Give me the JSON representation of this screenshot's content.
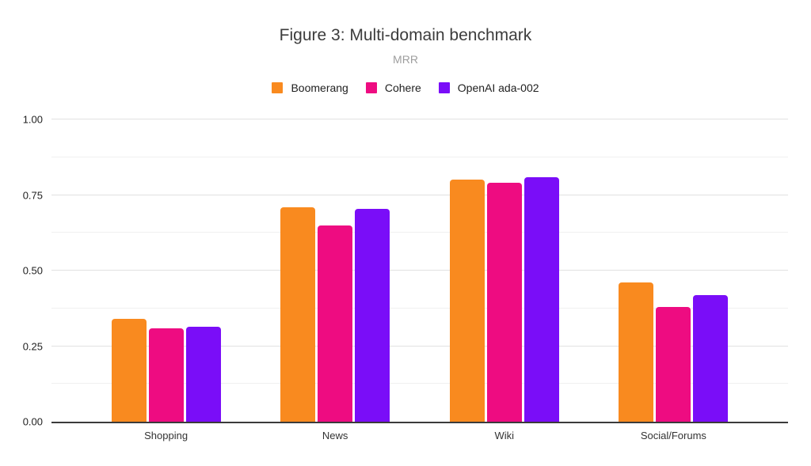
{
  "figure": {
    "title": "Figure 3: Multi-domain benchmark",
    "subtitle": "MRR"
  },
  "chart_data": {
    "type": "bar",
    "title": "Figure 3: Multi-domain benchmark",
    "subtitle": "MRR",
    "categories": [
      "Shopping",
      "News",
      "Wiki",
      "Social/Forums"
    ],
    "series": [
      {
        "name": "Boomerang",
        "color": "#F98A1F",
        "values": [
          0.34,
          0.71,
          0.8,
          0.46
        ]
      },
      {
        "name": "Cohere",
        "color": "#EE0C81",
        "values": [
          0.31,
          0.65,
          0.79,
          0.38
        ]
      },
      {
        "name": "OpenAI ada-002",
        "color": "#7A0DF8",
        "values": [
          0.315,
          0.705,
          0.81,
          0.42
        ]
      }
    ],
    "xlabel": "",
    "ylabel": "",
    "ylim": [
      0,
      1
    ],
    "yticks": [
      {
        "value": 0.0,
        "label": "0.00"
      },
      {
        "value": 0.25,
        "label": "0.25"
      },
      {
        "value": 0.5,
        "label": "0.50"
      },
      {
        "value": 0.75,
        "label": "0.75"
      },
      {
        "value": 1.0,
        "label": "1.00"
      }
    ],
    "minor_gridlines": [
      0.125,
      0.375,
      0.625,
      0.875
    ],
    "grid": true,
    "legend_position": "top"
  }
}
